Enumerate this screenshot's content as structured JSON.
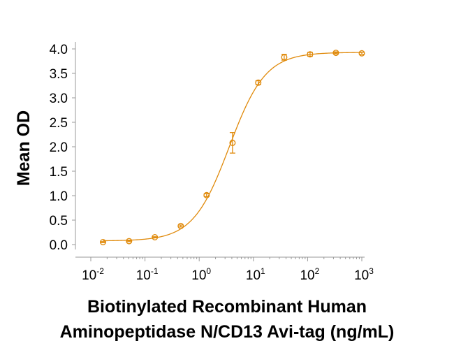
{
  "chart_data": {
    "type": "scatter",
    "title": "",
    "xlabel_lines": [
      "Biotinylated Recombinant Human",
      "Aminopeptidase N/CD13 Avi-tag (ng/mL)"
    ],
    "ylabel": "Mean OD",
    "x_scale": "log",
    "xlim_exponents": [
      -2,
      3
    ],
    "x_ticks": [
      {
        "base": "10",
        "exp": "-2",
        "value": 0.01
      },
      {
        "base": "10",
        "exp": "-1",
        "value": 0.1
      },
      {
        "base": "10",
        "exp": "0",
        "value": 1
      },
      {
        "base": "10",
        "exp": "1",
        "value": 10
      },
      {
        "base": "10",
        "exp": "2",
        "value": 100
      },
      {
        "base": "10",
        "exp": "3",
        "value": 1000
      }
    ],
    "ylim": [
      0,
      4.0
    ],
    "y_ticks": [
      "0.0",
      "0.5",
      "1.0",
      "1.5",
      "2.0",
      "2.5",
      "3.0",
      "3.5",
      "4.0"
    ],
    "grid": false,
    "series": [
      {
        "name": "Mean OD",
        "color": "#E08A0B",
        "x": [
          0.0168,
          0.0508,
          0.152,
          0.457,
          1.37,
          4.12,
          12.3,
          37.0,
          111,
          333,
          1000
        ],
        "y": [
          0.05,
          0.07,
          0.15,
          0.38,
          1.01,
          2.08,
          3.31,
          3.83,
          3.89,
          3.92,
          3.91
        ],
        "error": [
          0.01,
          0.01,
          0.01,
          0.02,
          0.03,
          0.21,
          0.04,
          0.06,
          0.04,
          0.02,
          0.02
        ]
      }
    ],
    "fit": {
      "model": "4PL",
      "bottom": 0.075,
      "top": 3.93,
      "ec50": 3.6,
      "hill": 1.3
    }
  }
}
